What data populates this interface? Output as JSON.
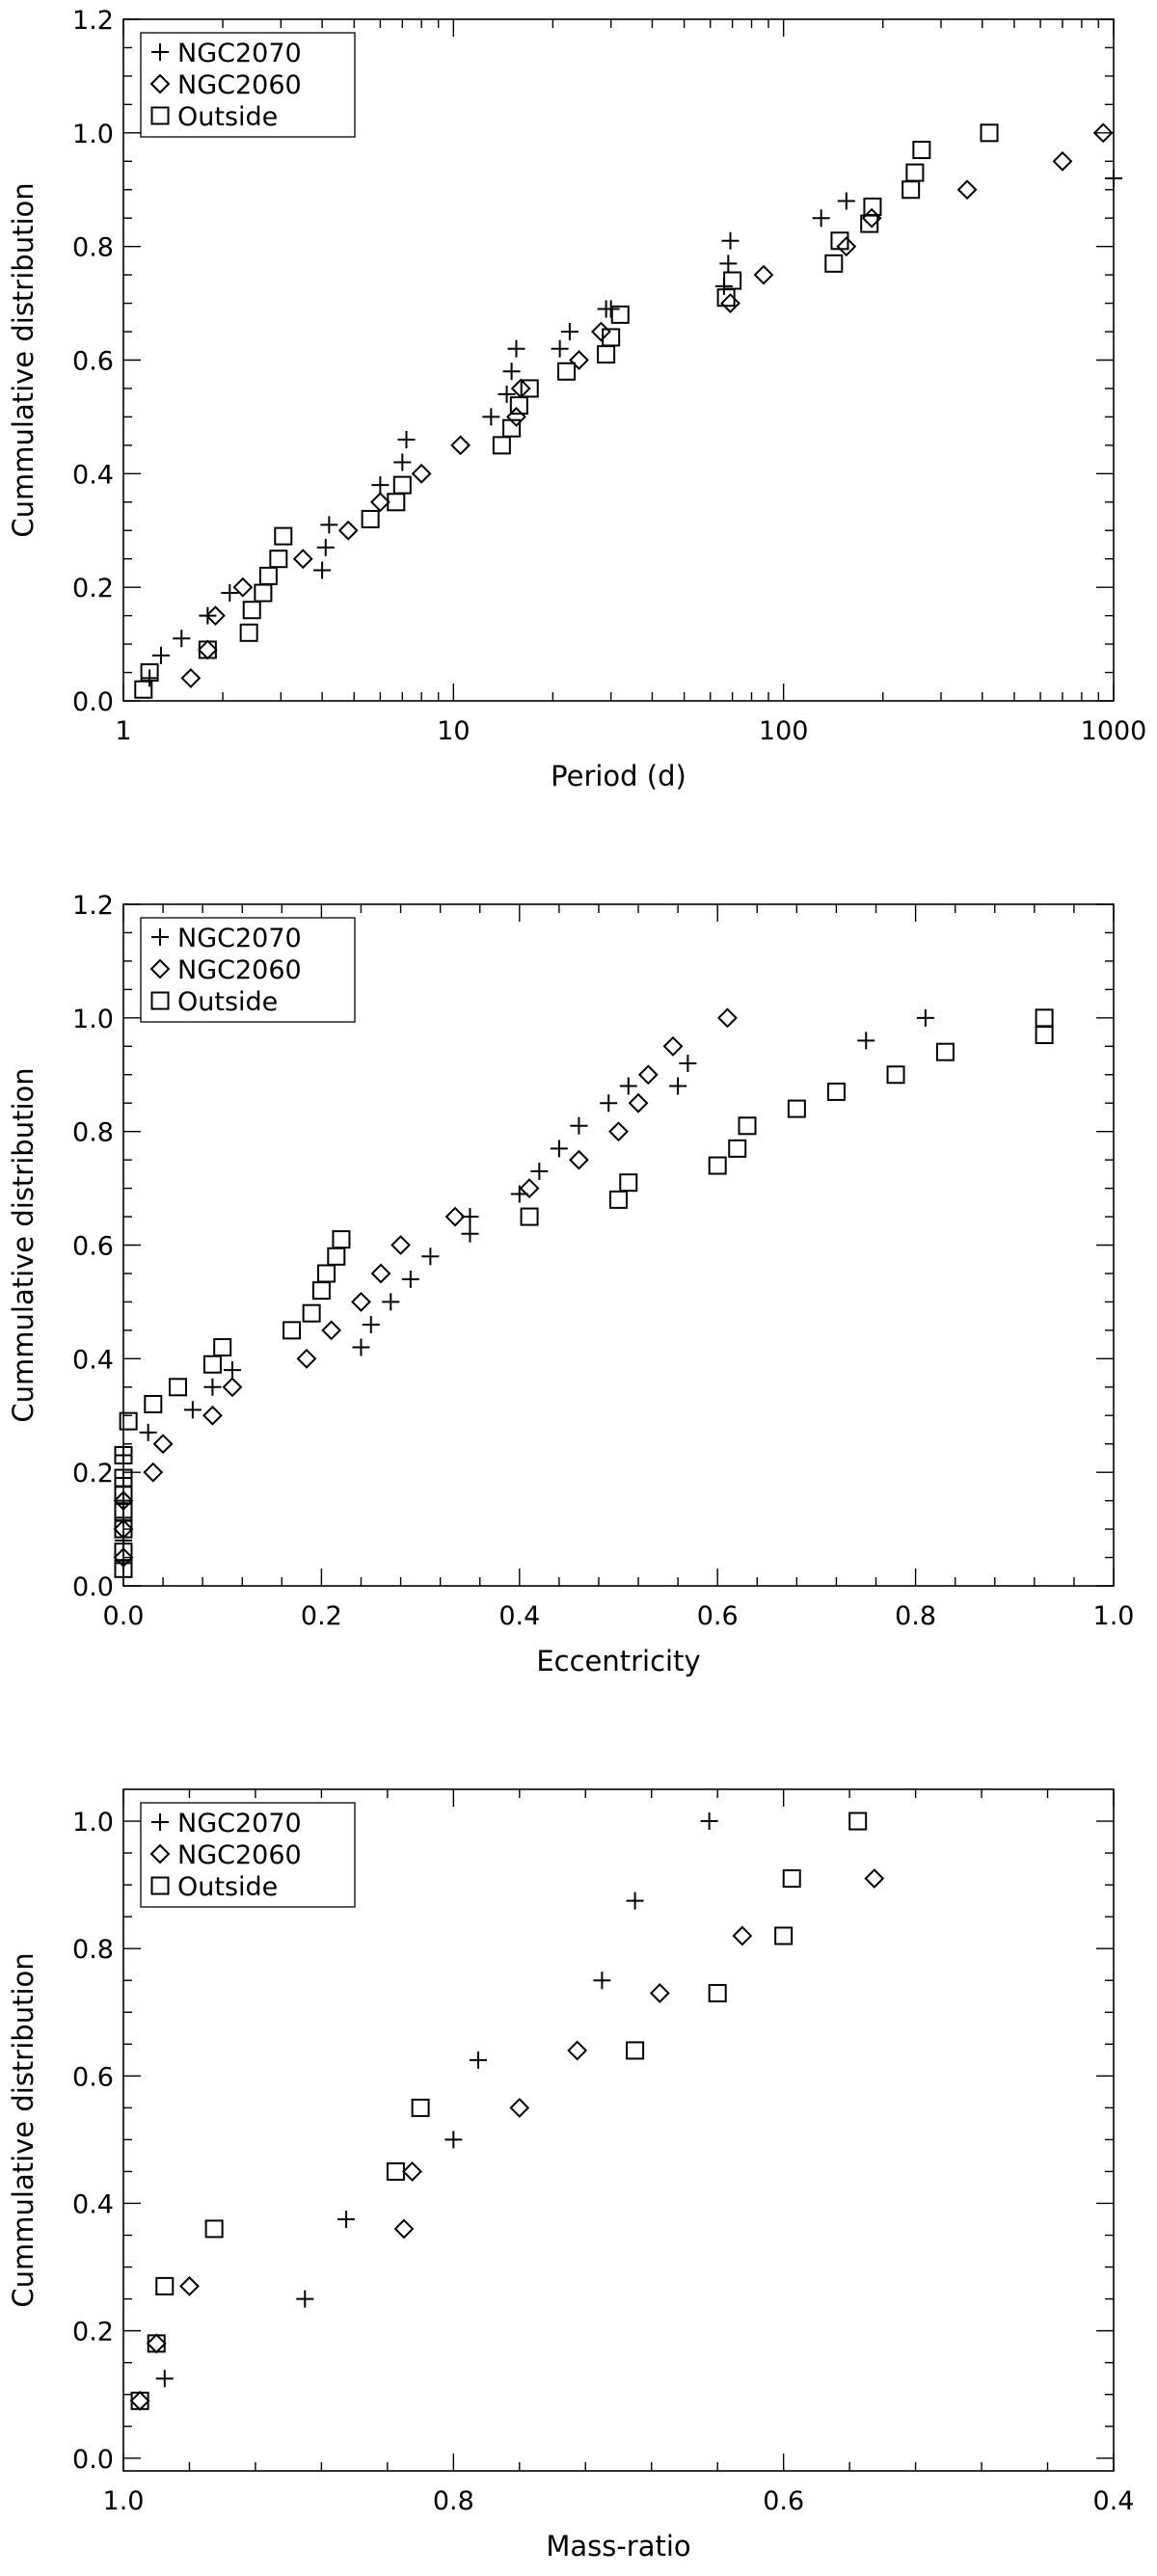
{
  "chart_data": [
    {
      "type": "scatter",
      "xscale": "log",
      "xlim": [
        1,
        1000
      ],
      "ylim": [
        0,
        1.2
      ],
      "xlabel": "Period (d)",
      "ylabel": "Cummulative distribution",
      "xticks": [
        1,
        10,
        100,
        1000
      ],
      "xtick_labels": [
        "1",
        "10",
        "100",
        "1000"
      ],
      "yticks": [
        0,
        0.2,
        0.4,
        0.6,
        0.8,
        1.0,
        1.2
      ],
      "ytick_labels": [
        "0.0",
        "0.2",
        "0.4",
        "0.6",
        "0.8",
        "1.0",
        "1.2"
      ],
      "legend_position": "top-left",
      "series": [
        {
          "name": "NGC2070",
          "marker": "plus",
          "x": [
            1.2,
            1.3,
            1.5,
            1.8,
            2.1,
            4.0,
            4.1,
            4.2,
            6.0,
            7.0,
            7.2,
            13.0,
            14.5,
            15.0,
            15.5,
            21.0,
            22.5,
            29.0,
            30.0,
            66.0,
            68.0,
            69.0,
            130.0,
            155.0,
            1000.0
          ],
          "y": [
            0.04,
            0.08,
            0.11,
            0.15,
            0.19,
            0.23,
            0.27,
            0.31,
            0.38,
            0.42,
            0.46,
            0.5,
            0.54,
            0.58,
            0.62,
            0.62,
            0.65,
            0.69,
            0.69,
            0.73,
            0.77,
            0.81,
            0.85,
            0.88,
            0.92
          ]
        },
        {
          "name": "NGC2060",
          "marker": "diamond",
          "x": [
            1.6,
            1.8,
            1.9,
            2.3,
            3.5,
            4.8,
            6.0,
            8.0,
            10.5,
            15.5,
            16.0,
            24.0,
            28.0,
            69.0,
            87.0,
            155.0,
            185.0,
            360.0,
            700.0,
            930.0
          ],
          "y": [
            0.04,
            0.09,
            0.15,
            0.2,
            0.25,
            0.3,
            0.35,
            0.4,
            0.45,
            0.5,
            0.55,
            0.6,
            0.65,
            0.7,
            0.75,
            0.8,
            0.85,
            0.9,
            0.95,
            1.0
          ]
        },
        {
          "name": "Outside",
          "marker": "square",
          "x": [
            1.15,
            1.2,
            1.8,
            2.4,
            2.45,
            2.65,
            2.75,
            2.95,
            3.05,
            5.6,
            6.7,
            7.0,
            14.0,
            15.0,
            15.8,
            17.0,
            22.0,
            29.0,
            30.0,
            32.0,
            67.0,
            70.0,
            142.0,
            148.0,
            182.0,
            186.0,
            243.0,
            250.0,
            262.0,
            420.0
          ],
          "y": [
            0.02,
            0.05,
            0.09,
            0.12,
            0.16,
            0.19,
            0.22,
            0.25,
            0.29,
            0.32,
            0.35,
            0.38,
            0.45,
            0.48,
            0.52,
            0.55,
            0.58,
            0.61,
            0.64,
            0.68,
            0.71,
            0.74,
            0.77,
            0.81,
            0.84,
            0.87,
            0.9,
            0.93,
            0.97,
            1.0
          ]
        }
      ]
    },
    {
      "type": "scatter",
      "xscale": "linear",
      "xlim": [
        0,
        1.0
      ],
      "ylim": [
        0,
        1.2
      ],
      "xlabel": "Eccentricity",
      "ylabel": "Cummulative distribution",
      "xticks": [
        0,
        0.2,
        0.4,
        0.6,
        0.8,
        1.0
      ],
      "xtick_labels": [
        "0.0",
        "0.2",
        "0.4",
        "0.6",
        "0.8",
        "1.0"
      ],
      "yticks": [
        0,
        0.2,
        0.4,
        0.6,
        0.8,
        1.0,
        1.2
      ],
      "ytick_labels": [
        "0.0",
        "0.2",
        "0.4",
        "0.6",
        "0.8",
        "1.0",
        "1.2"
      ],
      "legend_position": "top-left",
      "series": [
        {
          "name": "NGC2070",
          "marker": "plus",
          "x": [
            0.0,
            0.0,
            0.0,
            0.0,
            0.0,
            0.0,
            0.025,
            0.07,
            0.09,
            0.11,
            0.24,
            0.25,
            0.27,
            0.29,
            0.31,
            0.35,
            0.35,
            0.4,
            0.42,
            0.44,
            0.46,
            0.49,
            0.51,
            0.56,
            0.57,
            0.75,
            0.81
          ],
          "y": [
            0.04,
            0.08,
            0.12,
            0.15,
            0.19,
            0.23,
            0.27,
            0.31,
            0.35,
            0.38,
            0.42,
            0.46,
            0.5,
            0.54,
            0.58,
            0.62,
            0.65,
            0.69,
            0.73,
            0.77,
            0.81,
            0.85,
            0.88,
            0.88,
            0.92,
            0.96,
            1.0
          ]
        },
        {
          "name": "NGC2060",
          "marker": "diamond",
          "x": [
            0.0,
            0.0,
            0.0,
            0.03,
            0.04,
            0.09,
            0.11,
            0.185,
            0.21,
            0.24,
            0.26,
            0.28,
            0.335,
            0.41,
            0.46,
            0.5,
            0.52,
            0.53,
            0.555,
            0.61
          ],
          "y": [
            0.05,
            0.1,
            0.15,
            0.2,
            0.25,
            0.3,
            0.35,
            0.4,
            0.45,
            0.5,
            0.55,
            0.6,
            0.65,
            0.7,
            0.75,
            0.8,
            0.85,
            0.9,
            0.95,
            1.0
          ]
        },
        {
          "name": "Outside",
          "marker": "square",
          "x": [
            0.0,
            0.0,
            0.0,
            0.0,
            0.0,
            0.0,
            0.0,
            0.005,
            0.03,
            0.055,
            0.09,
            0.1,
            0.17,
            0.19,
            0.2,
            0.205,
            0.215,
            0.22,
            0.41,
            0.5,
            0.51,
            0.6,
            0.62,
            0.63,
            0.68,
            0.72,
            0.78,
            0.83,
            0.93,
            0.93
          ],
          "y": [
            0.03,
            0.06,
            0.1,
            0.13,
            0.16,
            0.19,
            0.23,
            0.29,
            0.32,
            0.35,
            0.39,
            0.42,
            0.45,
            0.48,
            0.52,
            0.55,
            0.58,
            0.61,
            0.65,
            0.68,
            0.71,
            0.74,
            0.77,
            0.81,
            0.84,
            0.87,
            0.9,
            0.94,
            0.97,
            1.0
          ]
        }
      ]
    },
    {
      "type": "scatter",
      "xscale": "linear",
      "xlim": [
        1.0,
        0.4
      ],
      "ylim": [
        -0.02,
        1.05
      ],
      "xlabel": "Mass-ratio",
      "ylabel": "Cummulative distribution",
      "xticks": [
        1.0,
        0.8,
        0.6,
        0.4
      ],
      "xtick_labels": [
        "1.0",
        "0.8",
        "0.6",
        "0.4"
      ],
      "yticks": [
        0,
        0.2,
        0.4,
        0.6,
        0.8,
        1.0
      ],
      "ytick_labels": [
        "0.0",
        "0.2",
        "0.4",
        "0.6",
        "0.8",
        "1.0"
      ],
      "legend_position": "top-left",
      "series": [
        {
          "name": "NGC2070",
          "marker": "plus",
          "x": [
            0.975,
            0.89,
            0.865,
            0.8,
            0.785,
            0.71,
            0.69,
            0.645
          ],
          "y": [
            0.125,
            0.25,
            0.375,
            0.5,
            0.625,
            0.75,
            0.875,
            1.0
          ]
        },
        {
          "name": "NGC2060",
          "marker": "diamond",
          "x": [
            0.99,
            0.98,
            0.96,
            0.83,
            0.825,
            0.76,
            0.725,
            0.675,
            0.625,
            0.545
          ],
          "y": [
            0.09,
            0.18,
            0.27,
            0.36,
            0.45,
            0.55,
            0.64,
            0.73,
            0.82,
            0.91
          ]
        },
        {
          "name": "Outside",
          "marker": "square",
          "x": [
            0.99,
            0.98,
            0.975,
            0.945,
            0.835,
            0.82,
            0.69,
            0.64,
            0.6,
            0.595,
            0.555
          ],
          "y": [
            0.09,
            0.18,
            0.27,
            0.36,
            0.45,
            0.55,
            0.64,
            0.73,
            0.82,
            0.91,
            1.0
          ]
        }
      ]
    }
  ]
}
